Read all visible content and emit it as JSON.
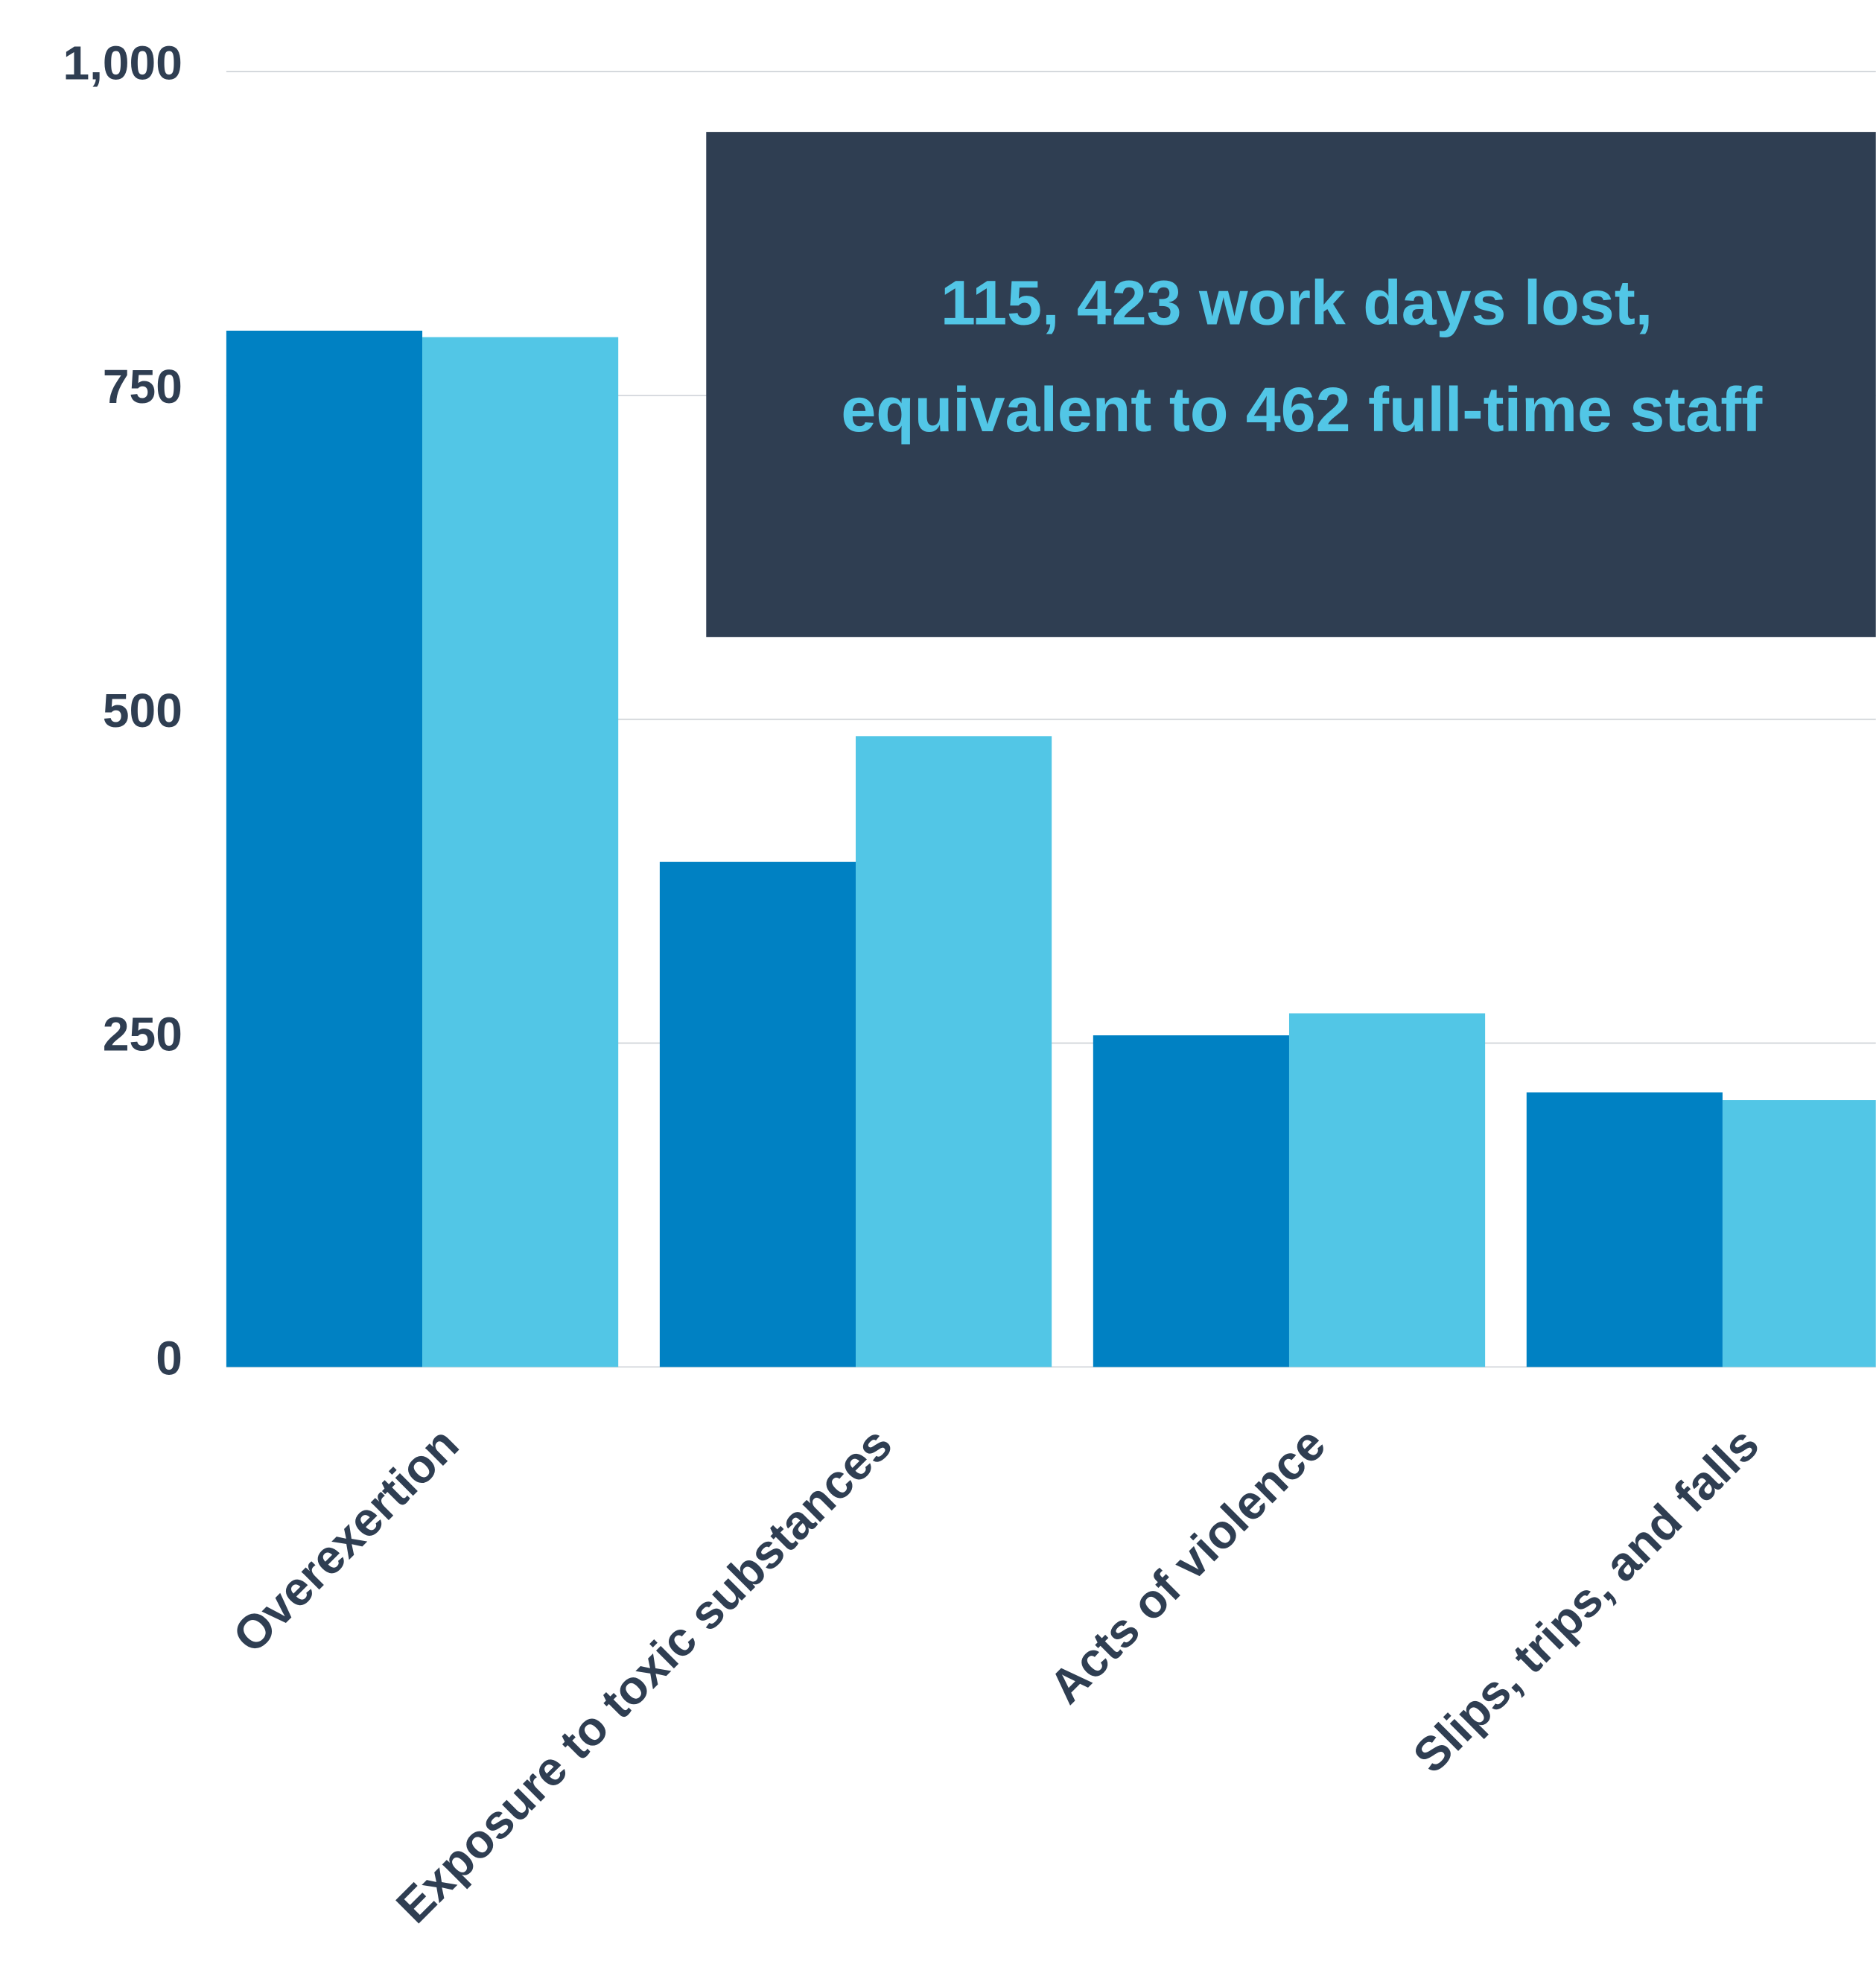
{
  "chart_data": {
    "type": "bar",
    "categories": [
      "Overexertion",
      "Exposure to toxic substances",
      "Acts of violence",
      "Slips, trips, and falls"
    ],
    "series": [
      {
        "color": "#0081c3",
        "values": [
          800,
          390,
          256,
          212
        ]
      },
      {
        "color": "#52c6e6",
        "values": [
          795,
          487,
          273,
          206
        ]
      }
    ],
    "ylim": [
      0,
      1000
    ],
    "yticks": [
      0,
      250,
      500,
      750,
      {
        "value": 1000,
        "label": "1,000"
      }
    ],
    "grid": true,
    "annotation": [
      "115, 423 work days lost,",
      "equivalent to 462 full-time staff"
    ]
  }
}
